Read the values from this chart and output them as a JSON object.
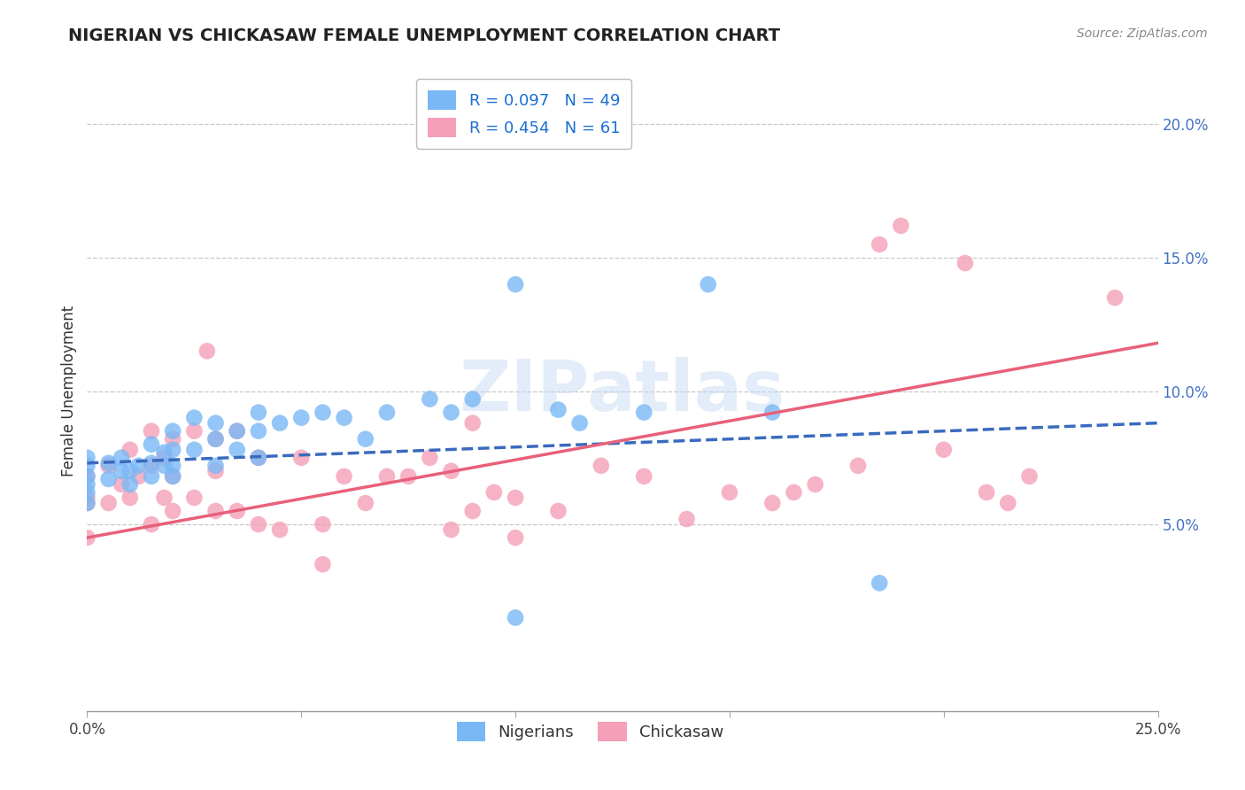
{
  "title": "NIGERIAN VS CHICKASAW FEMALE UNEMPLOYMENT CORRELATION CHART",
  "source": "Source: ZipAtlas.com",
  "ylabel": "Female Unemployment",
  "xlim": [
    0.0,
    0.25
  ],
  "ylim": [
    -0.02,
    0.22
  ],
  "xticks": [
    0.0,
    0.05,
    0.1,
    0.15,
    0.2,
    0.25
  ],
  "xticklabels": [
    "0.0%",
    "",
    "",
    "",
    "",
    "25.0%"
  ],
  "yticks_right": [
    0.05,
    0.1,
    0.15,
    0.2
  ],
  "yticklabels_right": [
    "5.0%",
    "10.0%",
    "15.0%",
    "20.0%"
  ],
  "nigerian_color": "#7ab8f5",
  "chickasaw_color": "#f5a0b8",
  "nigerian_line_color": "#3a6abf",
  "chickasaw_line_color": "#e8607a",
  "R_nigerian": 0.097,
  "N_nigerian": 49,
  "R_chickasaw": 0.454,
  "N_chickasaw": 61,
  "nigerian_x": [
    0.0,
    0.0,
    0.0,
    0.0,
    0.0,
    0.0,
    0.005,
    0.005,
    0.008,
    0.008,
    0.01,
    0.01,
    0.012,
    0.015,
    0.015,
    0.015,
    0.018,
    0.018,
    0.02,
    0.02,
    0.02,
    0.02,
    0.025,
    0.025,
    0.03,
    0.03,
    0.03,
    0.035,
    0.035,
    0.04,
    0.04,
    0.04,
    0.045,
    0.05,
    0.055,
    0.06,
    0.065,
    0.07,
    0.08,
    0.085,
    0.09,
    0.1,
    0.11,
    0.115,
    0.13,
    0.145,
    0.16,
    0.185,
    0.1
  ],
  "nigerian_y": [
    0.075,
    0.072,
    0.068,
    0.065,
    0.062,
    0.058,
    0.073,
    0.067,
    0.075,
    0.07,
    0.07,
    0.065,
    0.072,
    0.08,
    0.073,
    0.068,
    0.077,
    0.072,
    0.085,
    0.078,
    0.072,
    0.068,
    0.09,
    0.078,
    0.088,
    0.082,
    0.072,
    0.085,
    0.078,
    0.092,
    0.085,
    0.075,
    0.088,
    0.09,
    0.092,
    0.09,
    0.082,
    0.092,
    0.097,
    0.092,
    0.097,
    0.14,
    0.093,
    0.088,
    0.092,
    0.14,
    0.092,
    0.028,
    0.015
  ],
  "chickasaw_x": [
    0.0,
    0.0,
    0.0,
    0.0,
    0.005,
    0.005,
    0.008,
    0.01,
    0.01,
    0.012,
    0.015,
    0.015,
    0.015,
    0.018,
    0.018,
    0.02,
    0.02,
    0.02,
    0.025,
    0.025,
    0.028,
    0.03,
    0.03,
    0.03,
    0.035,
    0.035,
    0.04,
    0.04,
    0.045,
    0.05,
    0.055,
    0.055,
    0.06,
    0.065,
    0.07,
    0.075,
    0.08,
    0.085,
    0.085,
    0.09,
    0.09,
    0.095,
    0.1,
    0.1,
    0.11,
    0.12,
    0.13,
    0.14,
    0.15,
    0.16,
    0.165,
    0.17,
    0.18,
    0.185,
    0.19,
    0.2,
    0.205,
    0.21,
    0.215,
    0.22,
    0.24
  ],
  "chickasaw_y": [
    0.068,
    0.06,
    0.058,
    0.045,
    0.072,
    0.058,
    0.065,
    0.078,
    0.06,
    0.068,
    0.085,
    0.072,
    0.05,
    0.075,
    0.06,
    0.082,
    0.068,
    0.055,
    0.085,
    0.06,
    0.115,
    0.082,
    0.07,
    0.055,
    0.085,
    0.055,
    0.075,
    0.05,
    0.048,
    0.075,
    0.05,
    0.035,
    0.068,
    0.058,
    0.068,
    0.068,
    0.075,
    0.048,
    0.07,
    0.088,
    0.055,
    0.062,
    0.06,
    0.045,
    0.055,
    0.072,
    0.068,
    0.052,
    0.062,
    0.058,
    0.062,
    0.065,
    0.072,
    0.155,
    0.162,
    0.078,
    0.148,
    0.062,
    0.058,
    0.068,
    0.135
  ],
  "nig_line_x0": 0.0,
  "nig_line_x1": 0.25,
  "nig_line_y0": 0.073,
  "nig_line_y1": 0.088,
  "chick_line_x0": 0.0,
  "chick_line_x1": 0.25,
  "chick_line_y0": 0.045,
  "chick_line_y1": 0.118,
  "watermark": "ZIPatlas",
  "background_color": "#ffffff",
  "grid_color": "#c8c8c8"
}
